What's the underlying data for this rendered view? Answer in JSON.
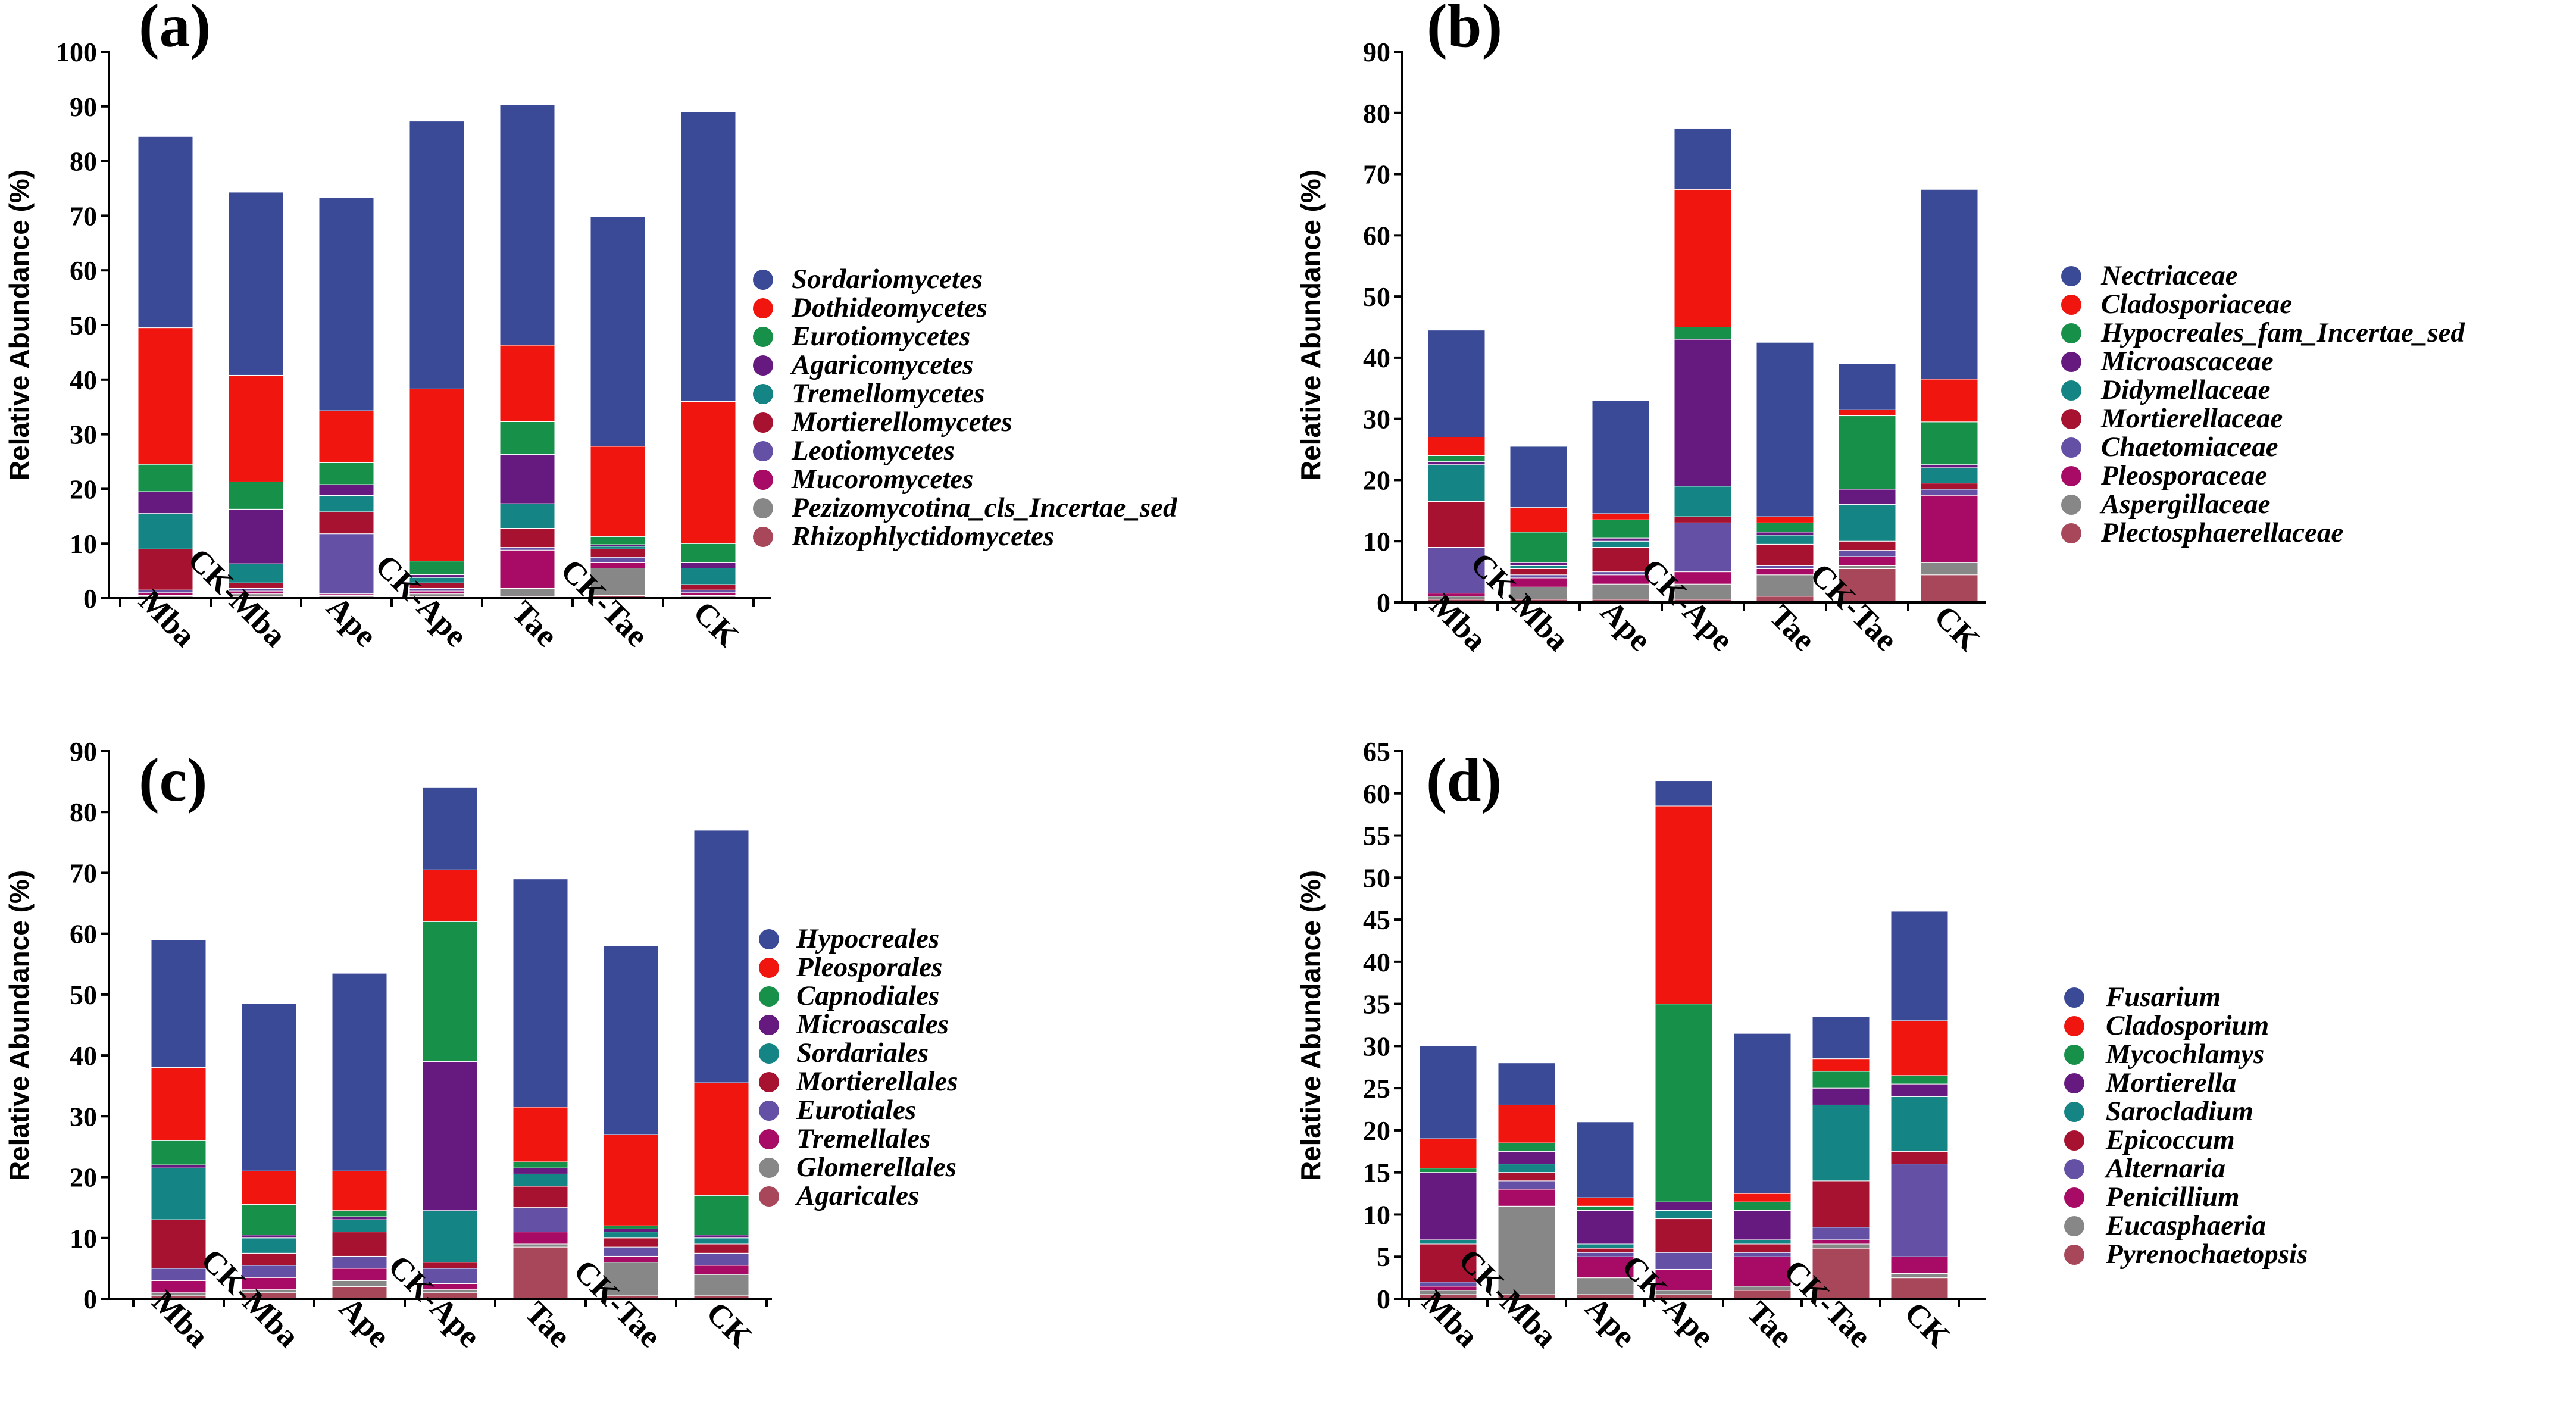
{
  "colors": [
    "#3b4a97",
    "#f0150f",
    "#17914a",
    "#661a80",
    "#148584",
    "#a6122f",
    "#6450a5",
    "#a70b65",
    "#878787",
    "#a9475a"
  ],
  "chart_data": [
    {
      "panel": "(a)",
      "type": "stacked-bar",
      "ylabel": "Relative Abundance (%)",
      "ylim": [
        0,
        100
      ],
      "ytick_step": 10,
      "categories": [
        "Mba",
        "CK-Mba",
        "Ape",
        "CK-Ape",
        "Tae",
        "CK-Tae",
        "CK"
      ],
      "series": [
        {
          "name": "Sordariomycetes",
          "values": [
            35,
            33.5,
            39,
            49,
            44,
            42,
            53
          ]
        },
        {
          "name": "Dothideomycetes",
          "values": [
            25,
            19.5,
            9.5,
            31.5,
            14,
            16.5,
            26
          ]
        },
        {
          "name": "Eurotiomycetes",
          "values": [
            5,
            5,
            4,
            2.5,
            6,
            1.5,
            3.5
          ]
        },
        {
          "name": "Agaricomycetes",
          "values": [
            4,
            10,
            2,
            0.5,
            9,
            0.3,
            1
          ]
        },
        {
          "name": "Tremellomycetes",
          "values": [
            6.5,
            3.5,
            3,
            1,
            4.5,
            0.5,
            3
          ]
        },
        {
          "name": "Mortierellomycetes",
          "values": [
            7.5,
            1,
            4,
            1,
            3.5,
            1.5,
            1
          ]
        },
        {
          "name": "Leotiomycetes",
          "values": [
            0.5,
            0.5,
            11,
            0.5,
            0.5,
            1,
            0.5
          ]
        },
        {
          "name": "Mucoromycetes",
          "values": [
            0.5,
            0.5,
            0.3,
            0.5,
            7,
            1,
            0.5
          ]
        },
        {
          "name": "Pezizomycotina_cls_Incertae_sed",
          "values": [
            0.3,
            0.5,
            0.3,
            0.5,
            1.5,
            5,
            0.3
          ]
        },
        {
          "name": "Rhizophlyctidomycetes",
          "values": [
            0.2,
            0.3,
            0.2,
            0.3,
            0.3,
            0.5,
            0.2
          ]
        }
      ]
    },
    {
      "panel": "(b)",
      "type": "stacked-bar",
      "ylabel": "Relative Abundance (%)",
      "ylim": [
        0,
        90
      ],
      "ytick_step": 10,
      "categories": [
        "Mba",
        "CK-Mba",
        "Ape",
        "CK-Ape",
        "Tae",
        "CK-Tae",
        "CK"
      ],
      "series": [
        {
          "name": "Nectriaceae",
          "values": [
            17.5,
            10,
            18.5,
            10,
            28.5,
            7.5,
            31
          ]
        },
        {
          "name": "Cladosporiaceae",
          "values": [
            3,
            4,
            1,
            22.5,
            1,
            1,
            7
          ]
        },
        {
          "name": "Hypocreales_fam_Incertae_sed",
          "values": [
            1,
            5,
            3,
            2,
            1.5,
            12,
            7
          ]
        },
        {
          "name": "Microascaceae",
          "values": [
            0.5,
            0.5,
            0.5,
            24,
            0.5,
            2.5,
            0.5
          ]
        },
        {
          "name": "Didymellaceae",
          "values": [
            6,
            0.5,
            1,
            5,
            1.5,
            6,
            2.5
          ]
        },
        {
          "name": "Mortierellaceae",
          "values": [
            7.5,
            1,
            4,
            1,
            3.5,
            1.5,
            1
          ]
        },
        {
          "name": "Chaetomiaceae",
          "values": [
            7.5,
            0.5,
            0.5,
            8,
            0.5,
            1,
            1
          ]
        },
        {
          "name": "Pleosporaceae",
          "values": [
            0.5,
            1.5,
            1.5,
            2,
            1,
            1.5,
            11
          ]
        },
        {
          "name": "Aspergillaceae",
          "values": [
            0.5,
            2,
            2.5,
            2.5,
            3.5,
            0.5,
            2
          ]
        },
        {
          "name": "Plectosphaerellaceae",
          "values": [
            0.5,
            0.5,
            0.5,
            0.5,
            1,
            5.5,
            4.5
          ]
        }
      ]
    },
    {
      "panel": "(c)",
      "type": "stacked-bar",
      "ylabel": "Relative Abundance (%)",
      "ylim": [
        0,
        90
      ],
      "ytick_step": 10,
      "categories": [
        "Mba",
        "CK-Mba",
        "Ape",
        "CK-Ape",
        "Tae",
        "CK-Tae",
        "CK"
      ],
      "series": [
        {
          "name": "Hypocreales",
          "values": [
            21,
            27.5,
            32.5,
            13.5,
            37.5,
            31,
            41.5
          ]
        },
        {
          "name": "Pleosporales",
          "values": [
            12,
            5.5,
            6.5,
            8.5,
            9,
            15,
            18.5
          ]
        },
        {
          "name": "Capnodiales",
          "values": [
            4,
            5,
            1,
            23,
            1,
            0.5,
            6.5
          ]
        },
        {
          "name": "Microascales",
          "values": [
            0.5,
            0.5,
            0.5,
            24.5,
            1,
            0.5,
            0.5
          ]
        },
        {
          "name": "Sordariales",
          "values": [
            8.5,
            2.5,
            2,
            8.5,
            2,
            1,
            1
          ]
        },
        {
          "name": "Mortierellales",
          "values": [
            8,
            2,
            4,
            1,
            3.5,
            1.5,
            1.5
          ]
        },
        {
          "name": "Eurotiales",
          "values": [
            2,
            2,
            2,
            2.5,
            4,
            1.5,
            2
          ]
        },
        {
          "name": "Tremellales",
          "values": [
            2,
            2,
            2,
            1,
            2,
            1,
            1.5
          ]
        },
        {
          "name": "Glomerellales",
          "values": [
            0.5,
            0.5,
            1,
            0.5,
            0.5,
            5.5,
            3.5
          ]
        },
        {
          "name": "Agaricales",
          "values": [
            0.5,
            1,
            2,
            1,
            8.5,
            0.5,
            0.5
          ]
        }
      ]
    },
    {
      "panel": "(d)",
      "type": "stacked-bar",
      "ylabel": "Relative Abundance (%)",
      "ylim": [
        0,
        65
      ],
      "ytick_step": 5,
      "categories": [
        "Mba",
        "CK-Mba",
        "Ape",
        "CK-Ape",
        "Tae",
        "CK-Tae",
        "CK"
      ],
      "series": [
        {
          "name": "Fusarium",
          "values": [
            11,
            5,
            9,
            3,
            19,
            5,
            13
          ]
        },
        {
          "name": "Cladosporium",
          "values": [
            3.5,
            4.5,
            1,
            23.5,
            1,
            1.5,
            6.5
          ]
        },
        {
          "name": "Mycochlamys",
          "values": [
            0.5,
            1,
            0.5,
            23.5,
            1,
            2,
            1
          ]
        },
        {
          "name": "Mortierella",
          "values": [
            8,
            1.5,
            4,
            1,
            3.5,
            2,
            1.5
          ]
        },
        {
          "name": "Sarocladium",
          "values": [
            0.5,
            1,
            0.5,
            1,
            0.5,
            9,
            6.5
          ]
        },
        {
          "name": "Epicoccum",
          "values": [
            4.5,
            1,
            0.5,
            4,
            1,
            5.5,
            1.5
          ]
        },
        {
          "name": "Alternaria",
          "values": [
            0.5,
            1,
            0.5,
            2,
            0.5,
            1.5,
            11
          ]
        },
        {
          "name": "Penicillium",
          "values": [
            0.5,
            2,
            2.5,
            2.5,
            3.5,
            0.5,
            2
          ]
        },
        {
          "name": "Eucasphaeria",
          "values": [
            0.5,
            10.5,
            2,
            0.5,
            0.5,
            0.5,
            0.5
          ]
        },
        {
          "name": "Pyrenochaetopsis",
          "values": [
            0.5,
            0.5,
            0.5,
            0.5,
            1,
            6,
            2.5
          ]
        }
      ]
    }
  ]
}
